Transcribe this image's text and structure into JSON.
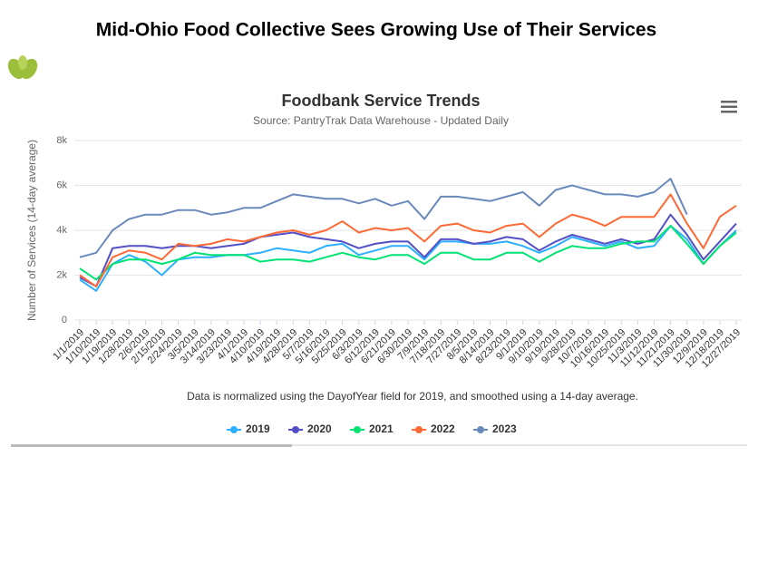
{
  "page_title": "Mid-Ohio Food Collective Sees Growing Use of Their Services",
  "chart_data": {
    "type": "line",
    "title": "Foodbank Service Trends",
    "subtitle": "Source: PantryTrak Data Warehouse - Updated Daily",
    "ylabel": "Number of Services (14-day average)",
    "caption": "Data is normalized using the DayofYear field for 2019, and smoothed using a 14-day average.",
    "categories": [
      "1/1/2019",
      "1/10/2019",
      "1/19/2019",
      "1/28/2019",
      "2/6/2019",
      "2/15/2019",
      "2/24/2019",
      "3/5/2019",
      "3/14/2019",
      "3/23/2019",
      "4/1/2019",
      "4/10/2019",
      "4/19/2019",
      "4/28/2019",
      "5/7/2019",
      "5/16/2019",
      "5/25/2019",
      "6/3/2019",
      "6/12/2019",
      "6/21/2019",
      "6/30/2019",
      "7/9/2019",
      "7/18/2019",
      "7/27/2019",
      "8/5/2019",
      "8/14/2019",
      "8/23/2019",
      "9/1/2019",
      "9/10/2019",
      "9/19/2019",
      "9/28/2019",
      "10/7/2019",
      "10/16/2019",
      "10/25/2019",
      "11/3/2019",
      "11/12/2019",
      "11/21/2019",
      "11/30/2019",
      "12/9/2019",
      "12/18/2019",
      "12/27/2019"
    ],
    "ylim": [
      0,
      8000
    ],
    "yticks": [
      0,
      {
        "value": 2000,
        "label": "2k"
      },
      {
        "value": 4000,
        "label": "4k"
      },
      {
        "value": 6000,
        "label": "6k"
      },
      {
        "value": 8000,
        "label": "8k"
      }
    ],
    "grid": true,
    "legend": "bottom",
    "series": [
      {
        "name": "2019",
        "color": "#2caffe",
        "values": [
          1800,
          1300,
          2500,
          2900,
          2600,
          2000,
          2700,
          2800,
          2800,
          2900,
          2900,
          3000,
          3200,
          3100,
          3000,
          3300,
          3400,
          2900,
          3100,
          3300,
          3300,
          2700,
          3500,
          3500,
          3400,
          3400,
          3500,
          3300,
          3000,
          3300,
          3700,
          3500,
          3300,
          3500,
          3200,
          3300,
          4200,
          3600,
          2500,
          3300,
          4000
        ]
      },
      {
        "name": "2020",
        "color": "#544fc5",
        "values": [
          1900,
          1500,
          3200,
          3300,
          3300,
          3200,
          3300,
          3300,
          3200,
          3300,
          3400,
          3700,
          3800,
          3900,
          3700,
          3600,
          3500,
          3200,
          3400,
          3500,
          3500,
          2800,
          3600,
          3600,
          3400,
          3500,
          3700,
          3600,
          3100,
          3500,
          3800,
          3600,
          3400,
          3600,
          3400,
          3600,
          4700,
          3800,
          2700,
          3500,
          4300
        ]
      },
      {
        "name": "2021",
        "color": "#00e272",
        "values": [
          2300,
          1800,
          2500,
          2700,
          2700,
          2500,
          2700,
          3000,
          2900,
          2900,
          2900,
          2600,
          2700,
          2700,
          2600,
          2800,
          3000,
          2800,
          2700,
          2900,
          2900,
          2500,
          3000,
          3000,
          2700,
          2700,
          3000,
          3000,
          2600,
          3000,
          3300,
          3200,
          3200,
          3400,
          3500,
          3500,
          4200,
          3400,
          2500,
          3300,
          3900
        ]
      },
      {
        "name": "2022",
        "color": "#fe6a35",
        "values": [
          2000,
          1500,
          2800,
          3100,
          3000,
          2700,
          3400,
          3300,
          3400,
          3600,
          3500,
          3700,
          3900,
          4000,
          3800,
          4000,
          4400,
          3900,
          4100,
          4000,
          4100,
          3500,
          4200,
          4300,
          4000,
          3900,
          4200,
          4300,
          3700,
          4300,
          4700,
          4500,
          4200,
          4600,
          4600,
          4600,
          5600,
          4300,
          3200,
          4600,
          5100
        ]
      },
      {
        "name": "2023",
        "color": "#6b8abc",
        "values": [
          2800,
          3000,
          4000,
          4500,
          4700,
          4700,
          4900,
          4900,
          4700,
          4800,
          5000,
          5000,
          5300,
          5600,
          5500,
          5400,
          5400,
          5200,
          5400,
          5100,
          5300,
          4500,
          5500,
          5500,
          5400,
          5300,
          5500,
          5700,
          5100,
          5800,
          6000,
          5800,
          5600,
          5600,
          5500,
          5700,
          6300,
          4700,
          null,
          null,
          null
        ]
      }
    ]
  }
}
